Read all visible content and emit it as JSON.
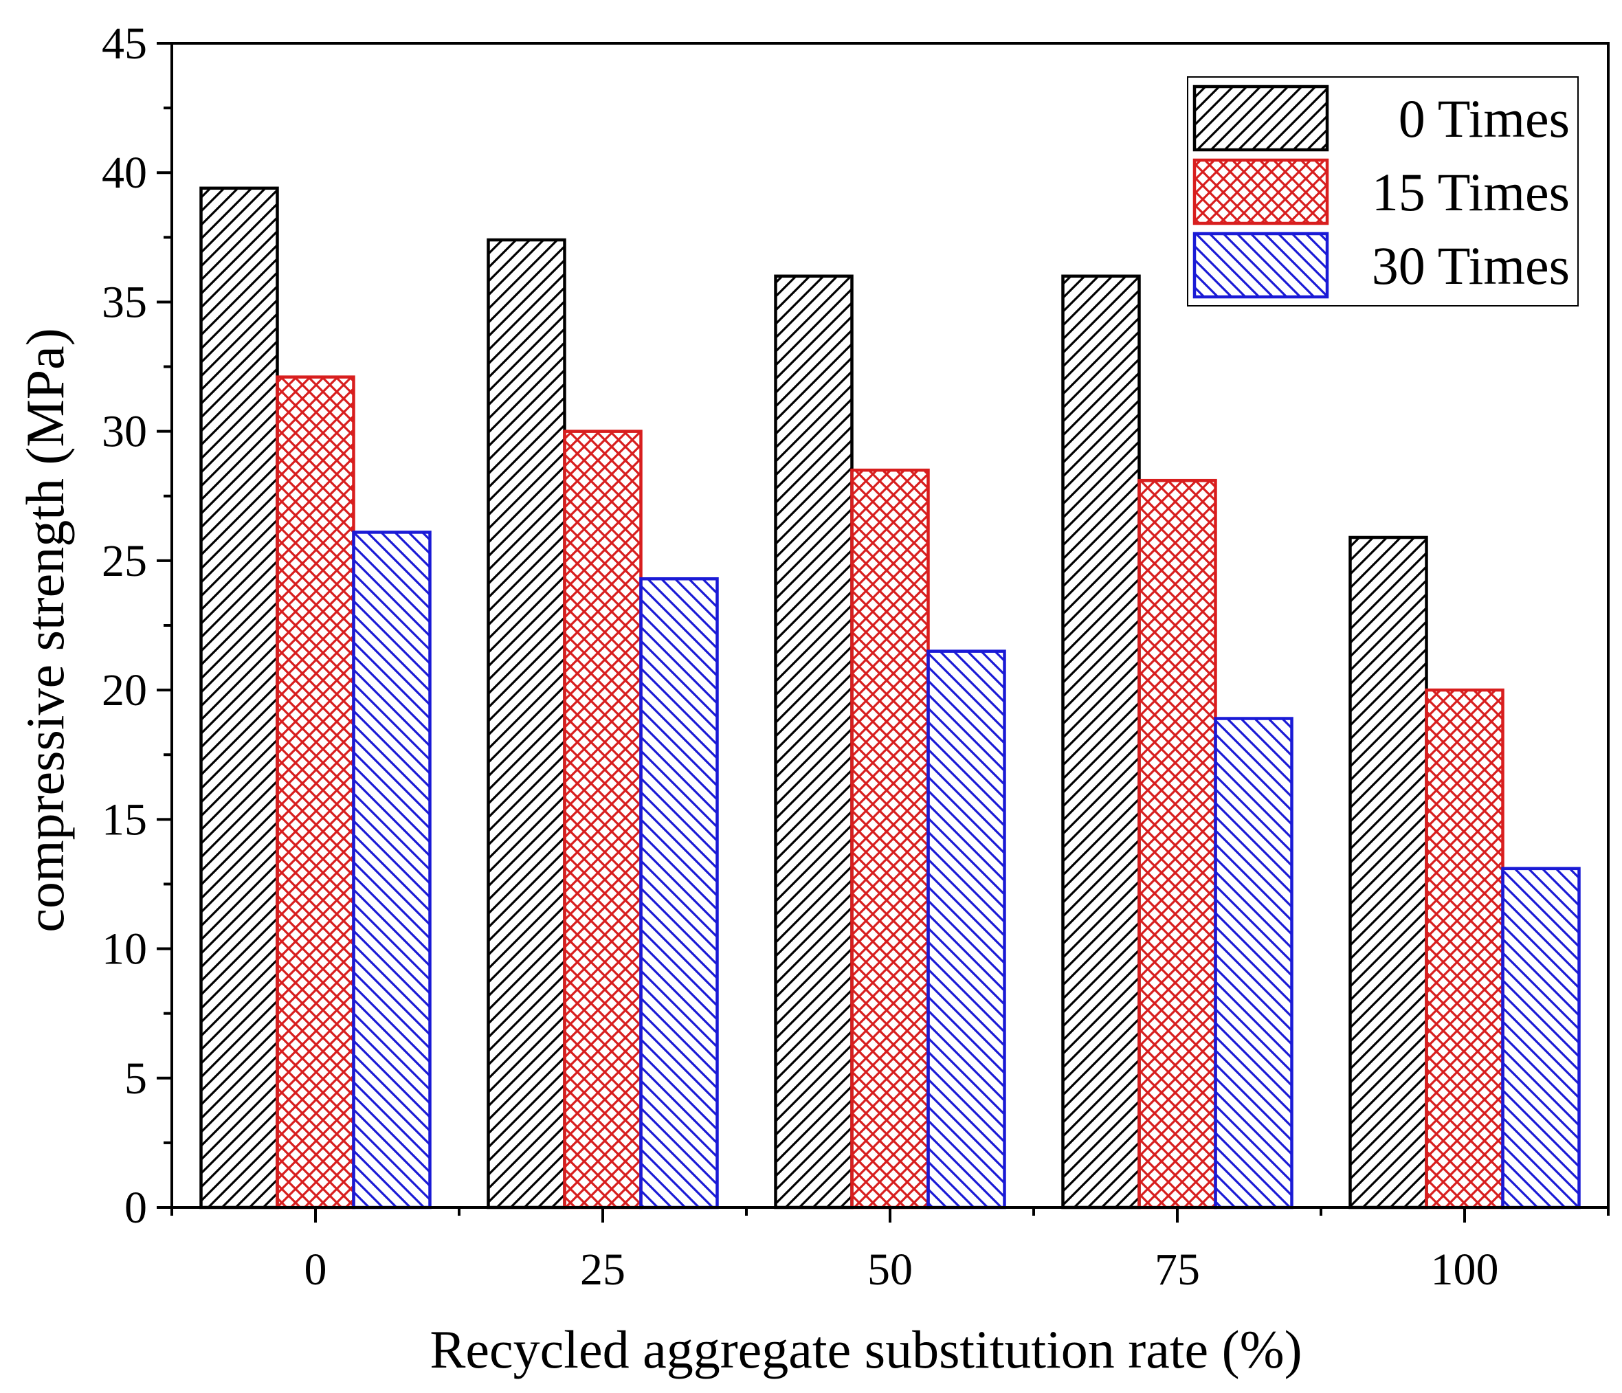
{
  "chart_data": {
    "type": "bar",
    "title": "",
    "xlabel": "Recycled aggregate substitution rate (%)",
    "ylabel": "compressive strength (MPa)",
    "ylim": [
      0,
      45
    ],
    "yticks": [
      "0",
      "5",
      "10",
      "15",
      "20",
      "25",
      "30",
      "35",
      "40",
      "45"
    ],
    "categories": [
      "0",
      "25",
      "50",
      "75",
      "100"
    ],
    "series": [
      {
        "name": "0 Times",
        "values": [
          39.4,
          37.4,
          36.0,
          36.0,
          25.9
        ],
        "color": "#000000",
        "pattern": "diag-up"
      },
      {
        "name": "15 Times",
        "values": [
          32.1,
          30.0,
          28.5,
          28.1,
          20.0
        ],
        "color": "#d81e1e",
        "pattern": "cross"
      },
      {
        "name": "30 Times",
        "values": [
          26.1,
          24.3,
          21.5,
          18.9,
          13.1
        ],
        "color": "#1a1ad6",
        "pattern": "diag-down"
      }
    ],
    "legend": "top-right",
    "grid": false
  }
}
